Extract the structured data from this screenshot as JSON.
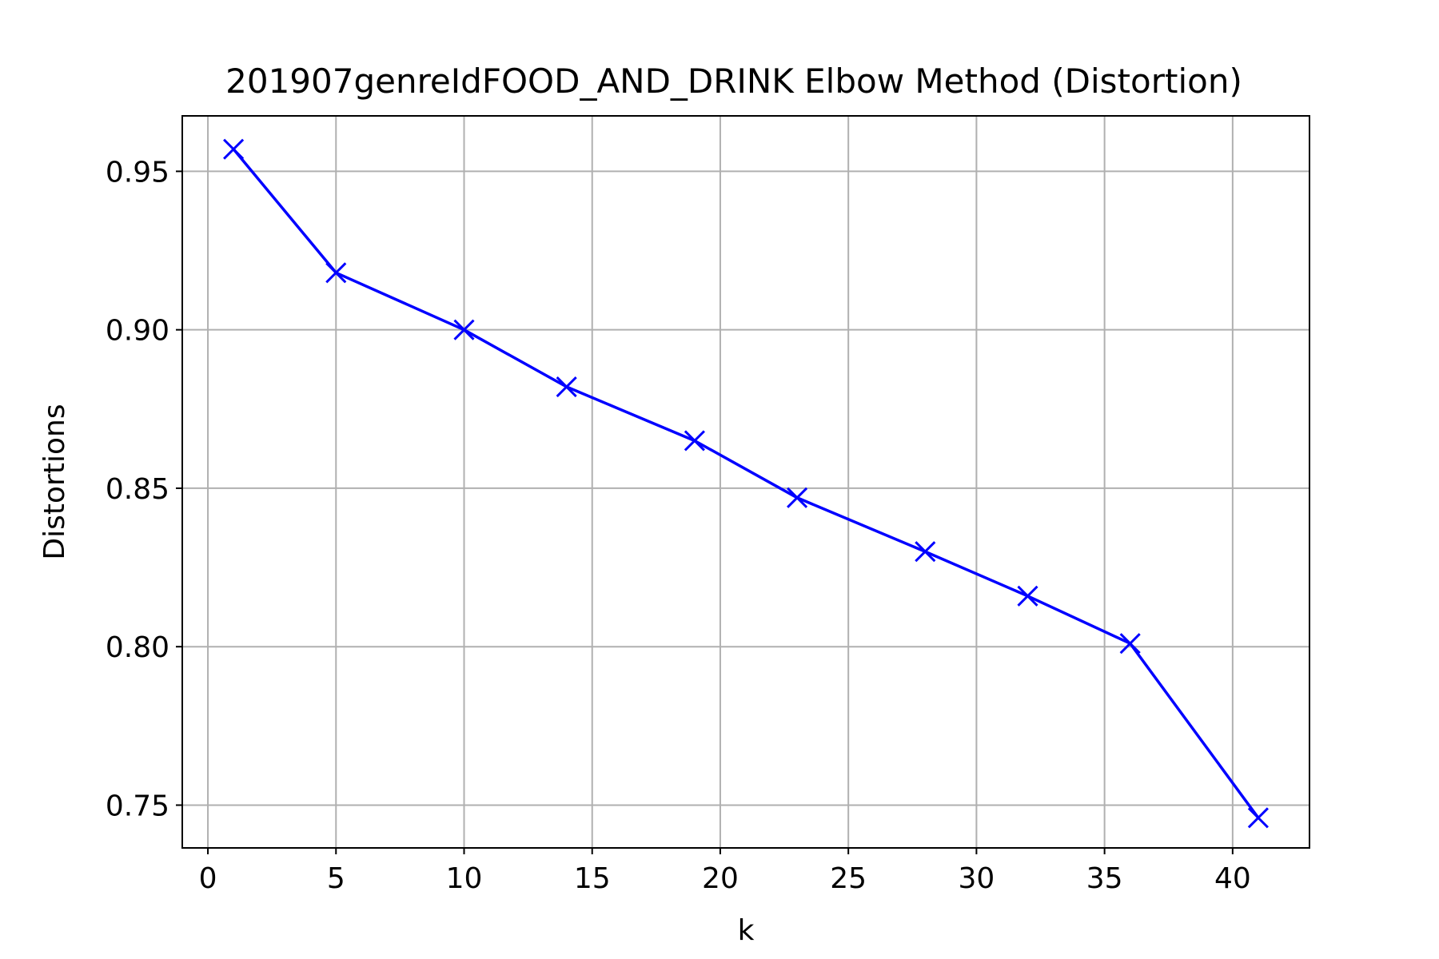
{
  "chart_data": {
    "type": "line",
    "title": "201907genreIdFOOD_AND_DRINK Elbow Method (Distortion)",
    "xlabel": "k",
    "ylabel": "Distortions",
    "x": [
      1,
      5,
      10,
      14,
      19,
      23,
      28,
      32,
      36,
      41
    ],
    "series": [
      {
        "values": [
          0.957,
          0.918,
          0.9,
          0.882,
          0.865,
          0.847,
          0.83,
          0.816,
          0.801,
          0.746
        ],
        "color": "#0000ff",
        "marker": "x"
      }
    ],
    "xlim": [
      -1.0,
      43.0
    ],
    "ylim": [
      0.7365,
      0.9675
    ],
    "xticks": [
      0,
      5,
      10,
      15,
      20,
      25,
      30,
      35,
      40
    ],
    "yticks": [
      0.75,
      0.8,
      0.85,
      0.9,
      0.95
    ],
    "xtick_labels": [
      "0",
      "5",
      "10",
      "15",
      "20",
      "25",
      "30",
      "35",
      "40"
    ],
    "ytick_labels": [
      "0.75",
      "0.80",
      "0.85",
      "0.90",
      "0.95"
    ],
    "grid": true,
    "legend": "none"
  }
}
